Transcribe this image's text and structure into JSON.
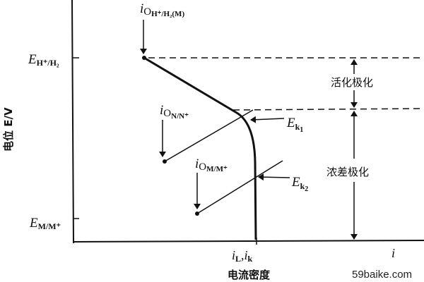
{
  "axes": {
    "y_label": "电位 E/V",
    "x_label": "电流密度",
    "x_symbol": "i"
  },
  "levels": {
    "e_h": {
      "main": "E",
      "sub": "H⁺/H₂"
    },
    "e_m": {
      "main": "E",
      "sub": "M/M⁺"
    }
  },
  "exchange_currents": [
    {
      "main": "i",
      "sub": "O",
      "subsub": "H⁺/H₂(M)"
    },
    {
      "main": "i",
      "sub": "O",
      "subsub": "N/N⁺"
    },
    {
      "main": "i",
      "sub": "O",
      "subsub": "M/M⁺"
    }
  ],
  "potentials": [
    {
      "main": "E",
      "sub": "k",
      "subsub": "1"
    },
    {
      "main": "E",
      "sub": "k",
      "subsub": "2"
    }
  ],
  "x_tick": {
    "label": "i",
    "sub1": "L",
    "sep": ",",
    "label2": "i",
    "sub2": "k"
  },
  "regions": {
    "activation": "活化极化",
    "concentration": "浓差极化"
  },
  "watermark": "59baike.com"
}
